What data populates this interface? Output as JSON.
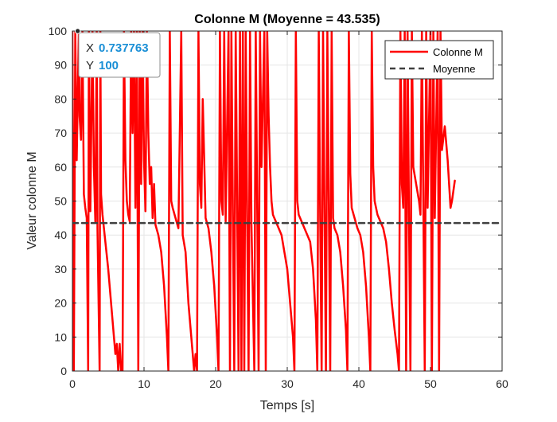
{
  "chart_data": {
    "type": "line",
    "title": "Colonne M (Moyenne = 43.535)",
    "xlabel": "Temps [s]",
    "ylabel": "Valeur colonne M",
    "xlim": [
      0,
      60
    ],
    "ylim": [
      0,
      100
    ],
    "xticks": [
      "0",
      "10",
      "20",
      "30",
      "40",
      "50",
      "60"
    ],
    "yticks": [
      "0",
      "10",
      "20",
      "30",
      "40",
      "50",
      "60",
      "70",
      "80",
      "90",
      "100"
    ],
    "grid": true,
    "legend_position": "top-right",
    "series": [
      {
        "name": "Colonne M",
        "color": "#ff0000",
        "style": "solid",
        "points": [
          [
            0,
            100
          ],
          [
            0.2,
            0
          ],
          [
            0.4,
            100
          ],
          [
            0.6,
            62
          ],
          [
            0.9,
            100
          ],
          [
            1.0,
            75
          ],
          [
            1.2,
            68
          ],
          [
            1.4,
            100
          ],
          [
            1.6,
            52
          ],
          [
            1.8,
            48
          ],
          [
            2.0,
            45
          ],
          [
            2.2,
            0
          ],
          [
            2.3,
            100
          ],
          [
            2.5,
            47
          ],
          [
            2.8,
            100
          ],
          [
            3.0,
            60
          ],
          [
            3.2,
            44
          ],
          [
            3.4,
            100
          ],
          [
            3.5,
            42
          ],
          [
            3.8,
            0
          ],
          [
            3.9,
            100
          ],
          [
            4.0,
            52
          ],
          [
            4.2,
            46
          ],
          [
            4.4,
            42
          ],
          [
            4.6,
            38
          ],
          [
            5.0,
            30
          ],
          [
            5.4,
            20
          ],
          [
            5.8,
            10
          ],
          [
            6.0,
            5
          ],
          [
            6.2,
            8
          ],
          [
            6.4,
            0
          ],
          [
            6.6,
            8
          ],
          [
            6.8,
            0
          ],
          [
            7.0,
            0
          ],
          [
            7.2,
            100
          ],
          [
            7.4,
            62
          ],
          [
            7.6,
            50
          ],
          [
            7.8,
            46
          ],
          [
            8.0,
            44
          ],
          [
            8.2,
            100
          ],
          [
            8.4,
            70
          ],
          [
            8.6,
            100
          ],
          [
            8.8,
            48
          ],
          [
            9.0,
            100
          ],
          [
            9.2,
            0
          ],
          [
            9.4,
            100
          ],
          [
            9.6,
            55
          ],
          [
            9.8,
            100
          ],
          [
            10.0,
            62
          ],
          [
            10.2,
            47
          ],
          [
            10.4,
            100
          ],
          [
            10.6,
            70
          ],
          [
            10.8,
            55
          ],
          [
            11.0,
            60
          ],
          [
            11.2,
            45
          ],
          [
            11.4,
            55
          ],
          [
            11.6,
            43
          ],
          [
            12.0,
            40
          ],
          [
            12.4,
            35
          ],
          [
            12.8,
            25
          ],
          [
            13.2,
            10
          ],
          [
            13.4,
            0
          ],
          [
            13.6,
            100
          ],
          [
            13.8,
            50
          ],
          [
            14.0,
            48
          ],
          [
            14.4,
            45
          ],
          [
            14.8,
            42
          ],
          [
            15.2,
            100
          ],
          [
            15.4,
            40
          ],
          [
            15.8,
            35
          ],
          [
            16.2,
            20
          ],
          [
            16.6,
            10
          ],
          [
            17.0,
            0
          ],
          [
            17.2,
            5
          ],
          [
            17.4,
            0
          ],
          [
            17.6,
            100
          ],
          [
            17.8,
            55
          ],
          [
            18.0,
            48
          ],
          [
            18.2,
            80
          ],
          [
            18.6,
            45
          ],
          [
            19.0,
            42
          ],
          [
            19.4,
            35
          ],
          [
            19.8,
            25
          ],
          [
            20.2,
            10
          ],
          [
            20.4,
            0
          ],
          [
            20.6,
            100
          ],
          [
            20.8,
            50
          ],
          [
            21.0,
            46
          ],
          [
            21.2,
            100
          ],
          [
            21.4,
            44
          ],
          [
            21.8,
            100
          ],
          [
            22.0,
            0
          ],
          [
            22.2,
            100
          ],
          [
            22.4,
            48
          ],
          [
            22.6,
            0
          ],
          [
            22.8,
            100
          ],
          [
            23.0,
            50
          ],
          [
            23.2,
            0
          ],
          [
            23.4,
            100
          ],
          [
            23.6,
            0
          ],
          [
            23.8,
            100
          ],
          [
            24.0,
            0
          ],
          [
            24.2,
            100
          ],
          [
            24.4,
            45
          ],
          [
            24.6,
            0
          ],
          [
            24.8,
            100
          ],
          [
            25.0,
            43
          ],
          [
            25.4,
            0
          ],
          [
            25.6,
            100
          ],
          [
            25.8,
            50
          ],
          [
            26.0,
            0
          ],
          [
            26.2,
            100
          ],
          [
            26.4,
            60
          ],
          [
            26.8,
            100
          ],
          [
            27.0,
            0
          ],
          [
            27.2,
            100
          ],
          [
            27.4,
            75
          ],
          [
            27.6,
            60
          ],
          [
            27.8,
            50
          ],
          [
            28.0,
            46
          ],
          [
            28.4,
            44
          ],
          [
            28.8,
            42
          ],
          [
            29.2,
            40
          ],
          [
            29.6,
            35
          ],
          [
            30.0,
            30
          ],
          [
            30.4,
            20
          ],
          [
            30.8,
            10
          ],
          [
            31.0,
            0
          ],
          [
            31.2,
            100
          ],
          [
            31.4,
            50
          ],
          [
            31.6,
            46
          ],
          [
            32.0,
            44
          ],
          [
            32.4,
            42
          ],
          [
            32.8,
            40
          ],
          [
            33.2,
            38
          ],
          [
            33.6,
            30
          ],
          [
            34.0,
            15
          ],
          [
            34.2,
            0
          ],
          [
            34.4,
            100
          ],
          [
            34.6,
            45
          ],
          [
            34.8,
            0
          ],
          [
            35.0,
            100
          ],
          [
            35.2,
            48
          ],
          [
            35.4,
            0
          ],
          [
            35.6,
            100
          ],
          [
            35.8,
            50
          ],
          [
            36.0,
            0
          ],
          [
            36.2,
            100
          ],
          [
            36.4,
            45
          ],
          [
            36.6,
            42
          ],
          [
            37.0,
            40
          ],
          [
            37.4,
            35
          ],
          [
            37.8,
            25
          ],
          [
            38.2,
            12
          ],
          [
            38.4,
            0
          ],
          [
            38.6,
            100
          ],
          [
            38.8,
            58
          ],
          [
            39.0,
            48
          ],
          [
            39.4,
            45
          ],
          [
            39.8,
            42
          ],
          [
            40.2,
            40
          ],
          [
            40.6,
            35
          ],
          [
            41.0,
            25
          ],
          [
            41.4,
            10
          ],
          [
            41.6,
            0
          ],
          [
            41.8,
            100
          ],
          [
            42.0,
            60
          ],
          [
            42.2,
            50
          ],
          [
            42.6,
            46
          ],
          [
            43.0,
            44
          ],
          [
            43.4,
            42
          ],
          [
            43.8,
            38
          ],
          [
            44.2,
            30
          ],
          [
            44.6,
            20
          ],
          [
            45.0,
            12
          ],
          [
            45.4,
            5
          ],
          [
            45.6,
            0
          ],
          [
            45.8,
            100
          ],
          [
            46.0,
            55
          ],
          [
            46.2,
            48
          ],
          [
            46.4,
            100
          ],
          [
            46.6,
            0
          ],
          [
            46.8,
            100
          ],
          [
            47.0,
            45
          ],
          [
            47.2,
            0
          ],
          [
            47.4,
            100
          ],
          [
            47.6,
            60
          ],
          [
            48.0,
            55
          ],
          [
            48.4,
            50
          ],
          [
            48.6,
            46
          ],
          [
            48.8,
            100
          ],
          [
            49.0,
            50
          ],
          [
            49.2,
            0
          ],
          [
            49.4,
            100
          ],
          [
            49.6,
            48
          ],
          [
            50.0,
            100
          ],
          [
            50.2,
            0
          ],
          [
            50.4,
            100
          ],
          [
            50.6,
            45
          ],
          [
            51.0,
            100
          ],
          [
            51.2,
            0
          ],
          [
            51.4,
            100
          ],
          [
            51.6,
            65
          ],
          [
            52.0,
            72
          ],
          [
            52.4,
            62
          ],
          [
            52.8,
            48
          ],
          [
            53.0,
            50
          ],
          [
            53.2,
            53
          ],
          [
            53.4,
            56
          ]
        ]
      },
      {
        "name": "Moyenne",
        "color": "#404040",
        "style": "dashed",
        "points": [
          [
            0,
            43.535
          ],
          [
            60,
            43.535
          ]
        ]
      }
    ],
    "datatip": {
      "x_label": "X",
      "x_value": "0.737763",
      "y_label": "Y",
      "y_value": "100",
      "x": 0.737763,
      "y": 100
    }
  }
}
